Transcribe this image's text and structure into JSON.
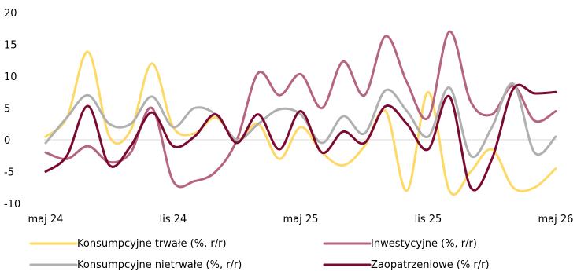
{
  "chart_data": {
    "type": "line",
    "title": "",
    "xlabel": "",
    "ylabel": "",
    "ylim": [
      -10,
      20
    ],
    "yticks": [
      "20",
      "15",
      "10",
      "5",
      "0",
      "-5",
      "-10"
    ],
    "ytick_values": [
      20,
      15,
      10,
      5,
      0,
      -5,
      -10
    ],
    "x_range": [
      "2024-05",
      "2026-05"
    ],
    "xticks": [
      "maj 24",
      "lis 24",
      "maj 25",
      "lis 25",
      "maj 26"
    ],
    "xtick_dates": [
      "2024-05",
      "2024-11",
      "2025-05",
      "2025-11",
      "2026-05"
    ],
    "x": [
      "2024-05",
      "2024-06",
      "2024-07",
      "2024-08",
      "2024-09",
      "2024-10",
      "2024-11",
      "2024-12",
      "2025-01",
      "2025-02",
      "2025-03",
      "2025-04",
      "2025-05",
      "2025-06",
      "2025-07",
      "2025-08",
      "2025-09",
      "2025-10",
      "2025-11",
      "2025-12",
      "2026-01",
      "2026-02",
      "2026-03",
      "2026-04",
      "2026-05"
    ],
    "legend_placement": "bottom",
    "grid": false,
    "series": [
      {
        "name": "Konsumpcyjne trwałe (%, r/r)",
        "color": "#FFD966",
        "values": [
          0.5,
          3.5,
          13.8,
          0.5,
          1.5,
          12.0,
          2.0,
          1.0,
          3.5,
          0.0,
          2.5,
          -3.0,
          2.0,
          -2.0,
          -4.0,
          -1.0,
          4.5,
          -8.0,
          7.5,
          -8.0,
          -5.0,
          -1.5,
          -7.5,
          -7.5,
          -4.5
        ]
      },
      {
        "name": "Inwestycyjne (%, r/r)",
        "color": "#B5657F",
        "values": [
          -2.0,
          -3.0,
          -1.0,
          -3.5,
          -2.0,
          5.0,
          -6.5,
          -6.5,
          -5.0,
          0.0,
          10.5,
          7.0,
          10.3,
          5.0,
          12.3,
          7.0,
          16.3,
          9.0,
          3.5,
          17.0,
          6.0,
          4.0,
          8.5,
          3.0,
          4.5
        ]
      },
      {
        "name": "Konsumpcyjne nietrwałe (%, r/r)",
        "color": "#B0B0B0",
        "values": [
          -0.5,
          3.5,
          7.0,
          2.5,
          2.5,
          6.8,
          2.0,
          5.0,
          4.0,
          0.0,
          2.5,
          4.8,
          4.0,
          -0.5,
          3.7,
          1.0,
          7.8,
          4.5,
          0.5,
          8.2,
          -2.5,
          2.0,
          8.8,
          -2.0,
          0.5
        ]
      },
      {
        "name": "Zaopatrzeniowe (% r/r)",
        "color": "#7B0A32",
        "values": [
          -5.0,
          -2.5,
          5.3,
          -4.0,
          -1.0,
          4.3,
          -1.0,
          0.5,
          4.0,
          -0.5,
          4.0,
          -1.5,
          4.5,
          -2.0,
          1.3,
          -0.5,
          5.3,
          2.5,
          -1.5,
          6.8,
          -7.5,
          -3.0,
          8.0,
          7.3,
          7.5
        ]
      }
    ]
  }
}
